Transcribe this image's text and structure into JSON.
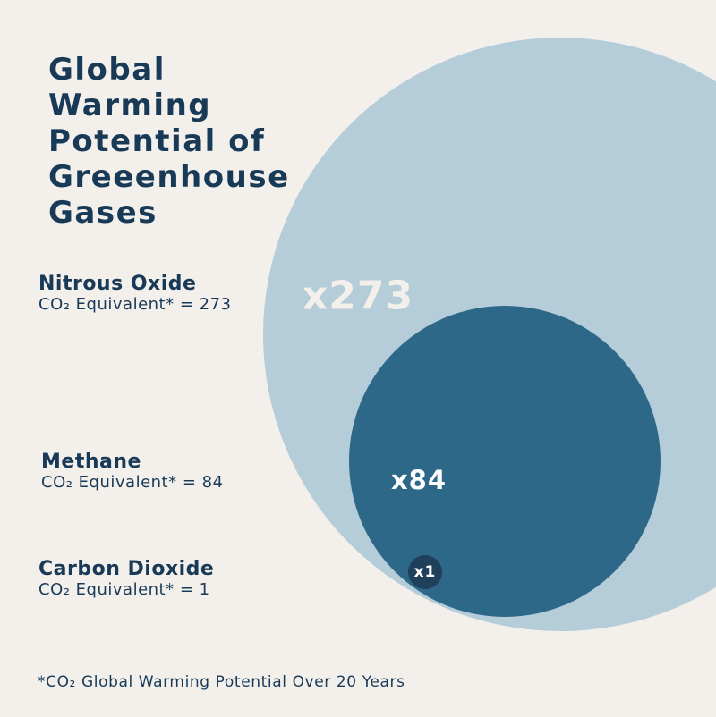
{
  "title": "Global Warming Potential of Greeenhouse Gases",
  "footnote": "*CO₂ Global Warming Potential Over 20 Years",
  "colors": {
    "background": "#f3f0ec",
    "text": "#183a57",
    "nitrous_oxide": "#b5ccd9",
    "methane": "#2e6888",
    "carbon_dioxide": "#1f3f5b",
    "bubble_label_light": "#f3f0ec",
    "bubble_label_white": "#ffffff"
  },
  "chart_data": {
    "type": "bubble",
    "title": "Global Warming Potential of Greeenhouse Gases",
    "unit_note": "*CO₂ Global Warming Potential Over 20 Years",
    "series": [
      {
        "name": "Nitrous Oxide",
        "equivalent_text": "CO₂ Equivalent* = 273",
        "value": 273,
        "bubble_label": "x273"
      },
      {
        "name": "Methane",
        "equivalent_text": "CO₂ Equivalent* = 84",
        "value": 84,
        "bubble_label": "x84"
      },
      {
        "name": "Carbon Dioxide",
        "equivalent_text": "CO₂ Equivalent* = 1",
        "value": 1,
        "bubble_label": "x1"
      }
    ]
  }
}
